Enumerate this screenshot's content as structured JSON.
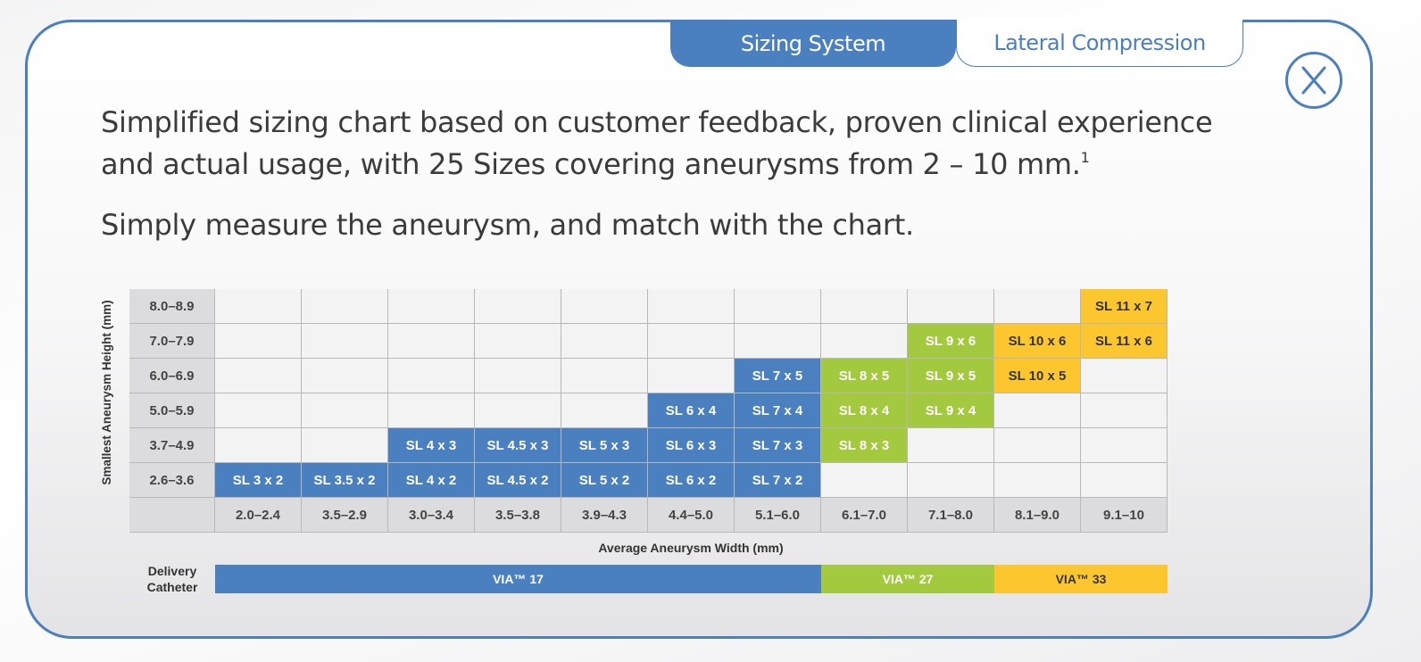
{
  "tabs": [
    {
      "label": "Sizing System",
      "active": true
    },
    {
      "label": "Lateral Compression",
      "active": false
    }
  ],
  "close_icon": "close-circle-x-icon",
  "intro": {
    "line1": "Simplified sizing chart based on customer feedback, proven clinical experience",
    "line2": "and actual usage, with 25 Sizes covering aneurysms from 2 – 10 mm.",
    "footnote": "1",
    "line3": "Simply measure the aneurysm, and match with the chart."
  },
  "colors": {
    "accent": "#4a7fc0",
    "blue": "#4a7fc0",
    "green": "#a3c93f",
    "yellow": "#fcc72e"
  },
  "chart_data": {
    "type": "table",
    "ylabel": "Smallest Aneurysm Height (mm)",
    "xlabel": "Average Aneurysm Width (mm)",
    "row_labels": [
      "8.0–8.9",
      "7.0–7.9",
      "6.0–6.9",
      "5.0–5.9",
      "3.7–4.9",
      "2.6–3.6"
    ],
    "col_labels": [
      "2.0–2.4",
      "3.5–2.9",
      "3.0–3.4",
      "3.5–3.8",
      "3.9–4.3",
      "4.4–5.0",
      "5.1–6.0",
      "6.1–7.0",
      "7.1–8.0",
      "8.1–9.0",
      "9.1–10"
    ],
    "cells": [
      [
        null,
        null,
        null,
        null,
        null,
        null,
        null,
        null,
        null,
        null,
        "SL 11 x 7"
      ],
      [
        null,
        null,
        null,
        null,
        null,
        null,
        null,
        null,
        "SL 9 x 6",
        "SL 10 x 6",
        "SL 11 x 6"
      ],
      [
        null,
        null,
        null,
        null,
        null,
        null,
        "SL 7 x 5",
        "SL 8 x 5",
        "SL 9 x 5",
        "SL 10 x 5",
        null
      ],
      [
        null,
        null,
        null,
        null,
        null,
        "SL 6 x 4",
        "SL 7 x 4",
        "SL 8 x 4",
        "SL 9 x 4",
        null,
        null
      ],
      [
        null,
        null,
        "SL 4 x 3",
        "SL 4.5 x 3",
        "SL 5 x 3",
        "SL 6 x 3",
        "SL 7 x 3",
        "SL 8 x 3",
        null,
        null,
        null
      ],
      [
        "SL 3 x 2",
        "SL 3.5 x 2",
        "SL 4 x 2",
        "SL 4.5 x 2",
        "SL 5 x 2",
        "SL 6 x 2",
        "SL 7 x 2",
        null,
        null,
        null,
        null
      ]
    ],
    "delivery_label": "Delivery Catheter",
    "catheters": [
      {
        "label": "VIA™ 17",
        "columns": 7,
        "color": "#4a7fc0",
        "text_color": "#ffffff"
      },
      {
        "label": "VIA™ 27",
        "columns": 2,
        "color": "#a3c93f",
        "text_color": "#ffffff"
      },
      {
        "label": "VIA™ 33",
        "columns": 2,
        "color": "#fcc72e",
        "text_color": "#333333"
      }
    ]
  }
}
